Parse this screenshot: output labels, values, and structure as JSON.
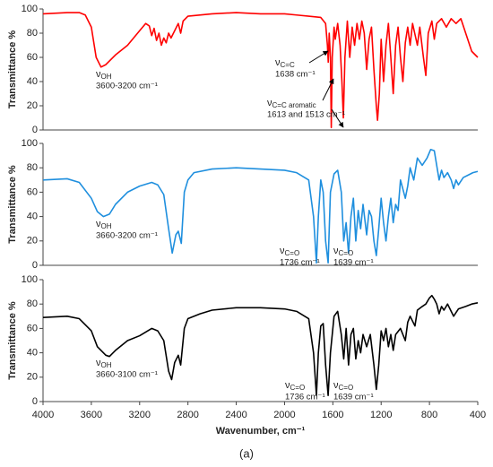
{
  "chart_data": [
    {
      "type": "line",
      "ylabel": "Transmittance %",
      "ylim": [
        0,
        100
      ],
      "yticks": [
        0,
        20,
        40,
        60,
        80,
        100
      ],
      "xlim": [
        4000,
        400
      ],
      "x": [
        4000,
        3800,
        3700,
        3650,
        3600,
        3560,
        3520,
        3480,
        3440,
        3400,
        3350,
        3300,
        3250,
        3200,
        3150,
        3120,
        3100,
        3080,
        3060,
        3040,
        3020,
        3000,
        2980,
        2960,
        2940,
        2900,
        2880,
        2860,
        2840,
        2800,
        2600,
        2400,
        2200,
        2000,
        1900,
        1800,
        1700,
        1660,
        1645,
        1638,
        1630,
        1620,
        1613,
        1605,
        1590,
        1580,
        1560,
        1540,
        1525,
        1513,
        1500,
        1480,
        1460,
        1440,
        1420,
        1400,
        1380,
        1360,
        1340,
        1320,
        1300,
        1280,
        1260,
        1240,
        1230,
        1215,
        1200,
        1180,
        1160,
        1140,
        1120,
        1100,
        1080,
        1060,
        1040,
        1020,
        1000,
        980,
        960,
        940,
        900,
        880,
        850,
        830,
        810,
        780,
        760,
        740,
        700,
        660,
        620,
        580,
        540,
        500,
        450,
        400
      ],
      "series": [
        {
          "color": "#ff0000",
          "values": [
            96,
            97,
            97,
            95,
            85,
            60,
            52,
            54,
            58,
            62,
            66,
            70,
            76,
            82,
            88,
            86,
            78,
            84,
            74,
            80,
            70,
            76,
            72,
            80,
            76,
            84,
            88,
            80,
            90,
            94,
            96,
            97,
            96,
            96,
            95,
            94,
            93,
            88,
            70,
            56,
            80,
            60,
            2,
            60,
            85,
            75,
            88,
            70,
            40,
            10,
            60,
            90,
            60,
            85,
            70,
            88,
            75,
            90,
            80,
            50,
            75,
            85,
            50,
            20,
            8,
            30,
            75,
            40,
            70,
            88,
            60,
            30,
            70,
            85,
            60,
            40,
            72,
            85,
            70,
            88,
            70,
            85,
            60,
            45,
            80,
            90,
            75,
            88,
            92,
            85,
            92,
            88,
            92,
            80,
            65,
            60
          ]
        }
      ],
      "annotations": [
        {
          "symbol": "ν",
          "subscript": "OH",
          "text": "3600-3200 cm⁻¹"
        },
        {
          "symbol": "ν",
          "subscript": "C=C",
          "text": "1638 cm⁻¹"
        },
        {
          "symbol": "ν",
          "subscript": "C=C aromatic",
          "text": "1613 and 1513 cm⁻¹"
        }
      ]
    },
    {
      "type": "line",
      "ylabel": "Transmittance %",
      "ylim": [
        0,
        100
      ],
      "yticks": [
        0,
        20,
        40,
        60,
        80,
        100
      ],
      "xlim": [
        4000,
        400
      ],
      "x": [
        4000,
        3800,
        3700,
        3600,
        3550,
        3500,
        3450,
        3400,
        3300,
        3200,
        3100,
        3050,
        3000,
        2960,
        2930,
        2900,
        2880,
        2855,
        2830,
        2800,
        2750,
        2600,
        2400,
        2200,
        2000,
        1900,
        1800,
        1760,
        1736,
        1720,
        1700,
        1680,
        1660,
        1639,
        1620,
        1590,
        1560,
        1530,
        1510,
        1490,
        1470,
        1450,
        1430,
        1410,
        1390,
        1370,
        1350,
        1320,
        1300,
        1280,
        1260,
        1240,
        1220,
        1200,
        1180,
        1160,
        1140,
        1120,
        1100,
        1080,
        1060,
        1040,
        1000,
        980,
        960,
        930,
        900,
        860,
        820,
        790,
        760,
        740,
        720,
        700,
        680,
        650,
        620,
        600,
        580,
        560,
        520,
        480,
        440,
        400
      ],
      "series": [
        {
          "color": "#1f8fde",
          "values": [
            70,
            71,
            68,
            55,
            44,
            40,
            42,
            50,
            60,
            65,
            68,
            66,
            58,
            30,
            10,
            25,
            28,
            18,
            60,
            70,
            76,
            79,
            80,
            79,
            78,
            76,
            70,
            40,
            2,
            40,
            70,
            60,
            20,
            2,
            60,
            75,
            78,
            60,
            20,
            35,
            10,
            40,
            55,
            20,
            45,
            30,
            50,
            25,
            45,
            40,
            20,
            8,
            30,
            55,
            35,
            20,
            40,
            55,
            35,
            50,
            45,
            70,
            55,
            65,
            80,
            70,
            88,
            82,
            88,
            95,
            94,
            82,
            70,
            78,
            72,
            76,
            70,
            63,
            70,
            66,
            72,
            74,
            76,
            77
          ]
        }
      ],
      "annotations": [
        {
          "symbol": "ν",
          "subscript": "OH",
          "text": "3660-3200 cm⁻¹"
        },
        {
          "symbol": "ν",
          "subscript": "C=O",
          "text": "1736 cm⁻¹"
        },
        {
          "symbol": "ν",
          "subscript": "C=O",
          "text": "1639 cm⁻¹"
        }
      ]
    },
    {
      "type": "line",
      "ylabel": "Transmittance %",
      "xlabel": "Wavenumber, cm⁻¹",
      "ylim": [
        0,
        100
      ],
      "yticks": [
        0,
        20,
        40,
        60,
        80,
        100
      ],
      "xlim": [
        4000,
        400
      ],
      "xticks": [
        4000,
        3600,
        3200,
        2800,
        2400,
        2000,
        1600,
        1200,
        800,
        400
      ],
      "x": [
        4000,
        3800,
        3700,
        3600,
        3550,
        3480,
        3450,
        3400,
        3300,
        3200,
        3100,
        3050,
        3000,
        2960,
        2935,
        2910,
        2880,
        2860,
        2830,
        2800,
        2700,
        2600,
        2400,
        2200,
        2000,
        1900,
        1800,
        1760,
        1736,
        1720,
        1700,
        1680,
        1660,
        1639,
        1620,
        1590,
        1560,
        1530,
        1510,
        1490,
        1470,
        1450,
        1430,
        1410,
        1390,
        1370,
        1350,
        1320,
        1290,
        1260,
        1240,
        1220,
        1200,
        1180,
        1160,
        1140,
        1120,
        1100,
        1080,
        1040,
        1000,
        980,
        960,
        920,
        900,
        860,
        830,
        800,
        780,
        760,
        740,
        720,
        700,
        680,
        650,
        620,
        600,
        560,
        500,
        450,
        400
      ],
      "series": [
        {
          "color": "#000000",
          "values": [
            69,
            70,
            68,
            58,
            45,
            38,
            37,
            42,
            50,
            54,
            60,
            58,
            50,
            25,
            18,
            32,
            38,
            30,
            60,
            68,
            72,
            75,
            77,
            77,
            76,
            74,
            68,
            40,
            5,
            40,
            62,
            64,
            30,
            5,
            40,
            70,
            74,
            55,
            35,
            60,
            30,
            55,
            60,
            35,
            50,
            40,
            55,
            45,
            55,
            30,
            10,
            30,
            58,
            50,
            60,
            45,
            55,
            42,
            55,
            60,
            50,
            65,
            70,
            62,
            75,
            78,
            80,
            85,
            87,
            84,
            80,
            72,
            78,
            75,
            80,
            74,
            70,
            76,
            78,
            80,
            81
          ]
        }
      ],
      "annotations": [
        {
          "symbol": "ν",
          "subscript": "OH",
          "text": "3660-3100 cm⁻¹"
        },
        {
          "symbol": "ν",
          "subscript": "C=O",
          "text": "1736 cm⁻¹"
        },
        {
          "symbol": "ν",
          "subscript": "C=O",
          "text": "1639 cm⁻¹"
        }
      ]
    }
  ],
  "caption": "(a)"
}
